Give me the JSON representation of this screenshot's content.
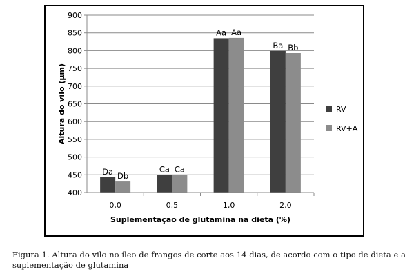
{
  "chart_data": {
    "type": "bar",
    "categories": [
      "0,0",
      "0,5",
      "1,0",
      "2,0"
    ],
    "series": [
      {
        "name": "RV",
        "values": [
          443,
          450,
          835,
          799
        ],
        "labels": [
          "Da",
          "Ca",
          "Aa",
          "Ba"
        ],
        "color": "#3f3f3f"
      },
      {
        "name": "RV+A",
        "values": [
          431,
          450,
          836,
          793
        ],
        "labels": [
          "Db",
          "Ca",
          "Aa",
          "Bb"
        ],
        "color": "#8c8c8c"
      }
    ],
    "ylabel": "Altura do vilo (µm)",
    "xlabel": "Suplementação de  glutamina na dieta (%)",
    "ylim": [
      400,
      900
    ],
    "yticks": [
      400,
      450,
      500,
      550,
      600,
      650,
      700,
      750,
      800,
      850,
      900
    ],
    "grid": true,
    "legend_position": "right"
  },
  "caption": "Figura 1. Altura do vilo no íleo de frangos de corte aos 14 dias, de acordo com o tipo de dieta e a suplementação de glutamina"
}
